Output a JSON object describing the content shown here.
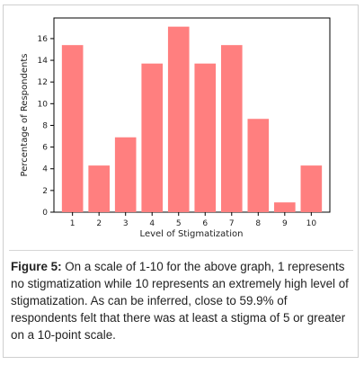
{
  "chart_data": {
    "type": "bar",
    "categories": [
      "1",
      "2",
      "3",
      "4",
      "5",
      "6",
      "7",
      "8",
      "9",
      "10"
    ],
    "values": [
      15.4,
      4.3,
      6.9,
      13.7,
      17.1,
      13.7,
      15.4,
      8.6,
      0.9,
      4.3
    ],
    "ylim": [
      0,
      17.9
    ],
    "yticks": [
      0,
      2,
      4,
      6,
      8,
      10,
      12,
      14,
      16
    ],
    "xlabel": "Level of Stigmatization",
    "ylabel": "Percentage of Respondents",
    "bar_color": "#ff7f7f",
    "grid": false
  },
  "caption": {
    "label": "Figure 5:",
    "text": " On a scale of 1-10 for the above graph, 1 represents no stigmatization while 10 represents an extremely high level of stigmatization. As can be inferred, close to 59.9% of respondents felt that there was at least a stigma of 5 or greater on a 10-point scale."
  }
}
